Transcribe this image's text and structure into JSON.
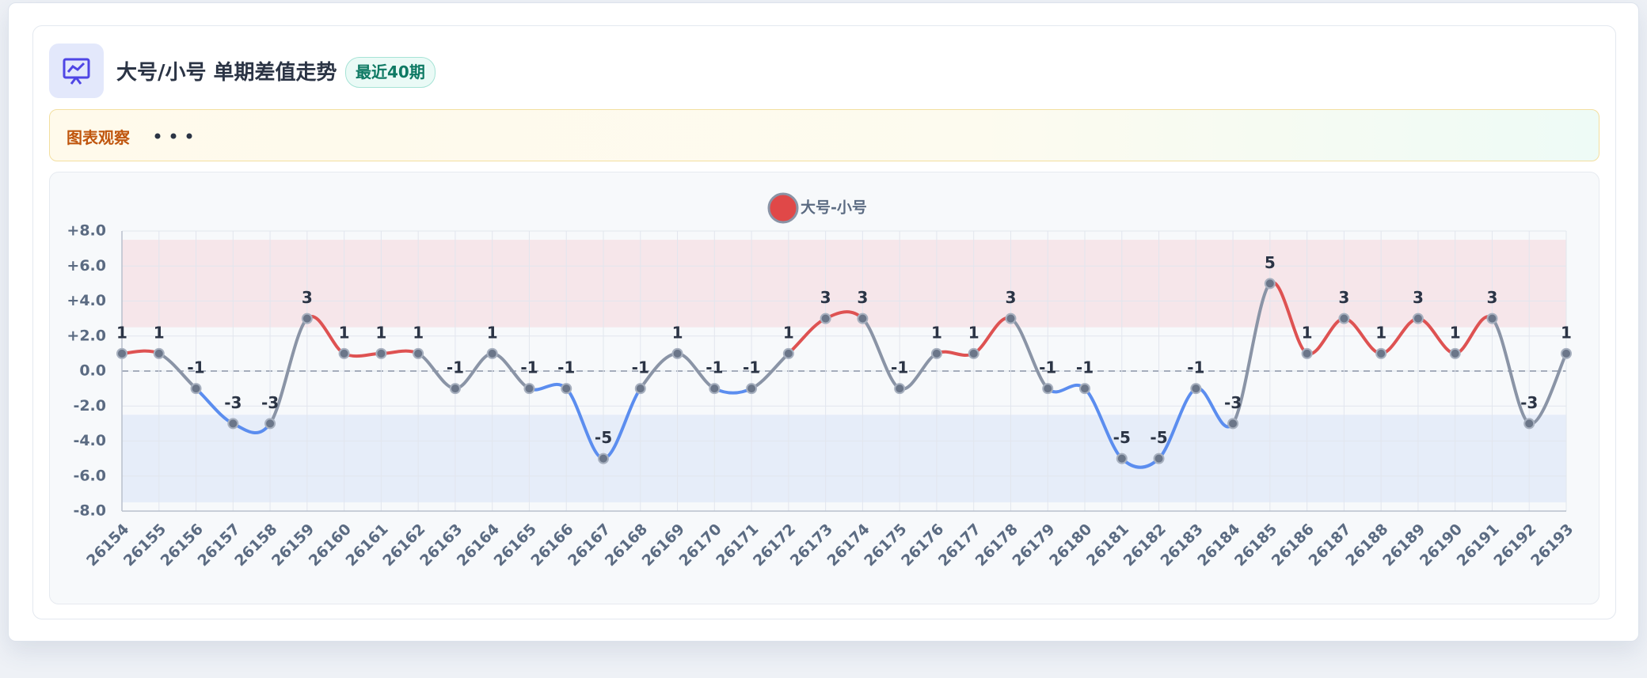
{
  "header": {
    "title": "大号/小号 单期差值走势",
    "badge": "最近40期"
  },
  "observation": {
    "label": "图表观察"
  },
  "chart_data": {
    "type": "line",
    "categories": [
      "26154",
      "26155",
      "26156",
      "26157",
      "26158",
      "26159",
      "26160",
      "26161",
      "26162",
      "26163",
      "26164",
      "26165",
      "26166",
      "26167",
      "26168",
      "26169",
      "26170",
      "26171",
      "26172",
      "26173",
      "26174",
      "26175",
      "26176",
      "26177",
      "26178",
      "26179",
      "26180",
      "26181",
      "26182",
      "26183",
      "26184",
      "26185",
      "26186",
      "26187",
      "26188",
      "26189",
      "26190",
      "26191",
      "26192",
      "26193"
    ],
    "series": [
      {
        "name": "大号-小号",
        "color": "#e04848",
        "values": [
          1,
          1,
          -1,
          -3,
          -3,
          3,
          1,
          1,
          1,
          -1,
          1,
          -1,
          -1,
          -5,
          -1,
          1,
          -1,
          -1,
          1,
          3,
          3,
          -1,
          1,
          1,
          3,
          -1,
          -1,
          -5,
          -5,
          -1,
          -3,
          5,
          1,
          3,
          1,
          3,
          1,
          3,
          -3,
          1
        ]
      }
    ],
    "segment_colors": {
      "positive": "#de5252",
      "negative": "#5b8def",
      "cross": "#8a94a6"
    },
    "point_color": "#6b7689",
    "bands": [
      {
        "from": 2.5,
        "to": 7.5,
        "color": "#f6e6ea"
      },
      {
        "from": -7.5,
        "to": -2.5,
        "color": "#e6edf9"
      }
    ],
    "ylim": [
      -8,
      8
    ],
    "yticks": [
      {
        "value": 8,
        "label": "+8.0"
      },
      {
        "value": 6,
        "label": "+6.0"
      },
      {
        "value": 4,
        "label": "+4.0"
      },
      {
        "value": 2,
        "label": "+2.0"
      },
      {
        "value": 0,
        "label": "0.0"
      },
      {
        "value": -2,
        "label": "-2.0"
      },
      {
        "value": -4,
        "label": "-4.0"
      },
      {
        "value": -6,
        "label": "-6.0"
      },
      {
        "value": -8,
        "label": "-8.0"
      }
    ],
    "grid": true,
    "zero_line": true,
    "smooth": true,
    "legend": "top"
  }
}
